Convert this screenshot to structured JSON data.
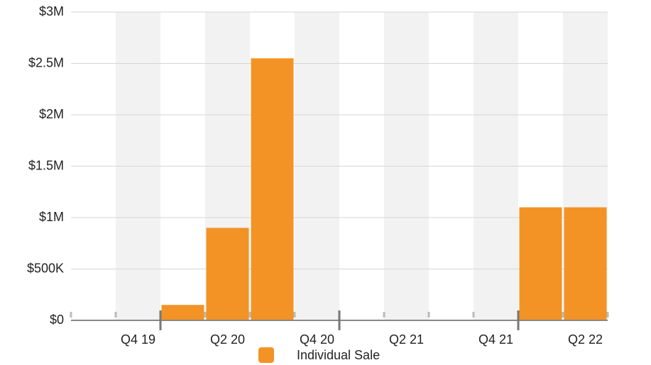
{
  "chart_data": {
    "type": "bar",
    "categories": [
      null,
      "Q4 19",
      null,
      "Q2 20",
      null,
      "Q4 20",
      null,
      "Q2 21",
      null,
      "Q4 21",
      null,
      "Q2 22"
    ],
    "series": [
      {
        "name": "Individual Sale",
        "color": "#f39325",
        "values": [
          null,
          null,
          150000,
          900000,
          2550000,
          null,
          null,
          null,
          null,
          null,
          1100000,
          1100000
        ]
      }
    ],
    "ylim": [
      0,
      3000000
    ],
    "yticks": [
      {
        "value": 0,
        "label": "$0"
      },
      {
        "value": 500000,
        "label": "$500K"
      },
      {
        "value": 1000000,
        "label": "$1M"
      },
      {
        "value": 1500000,
        "label": "$1.5M"
      },
      {
        "value": 2000000,
        "label": "$2M"
      },
      {
        "value": 2500000,
        "label": "$2.5M"
      },
      {
        "value": 3000000,
        "label": "$3M"
      }
    ],
    "grid": true,
    "legend": "bottom"
  }
}
